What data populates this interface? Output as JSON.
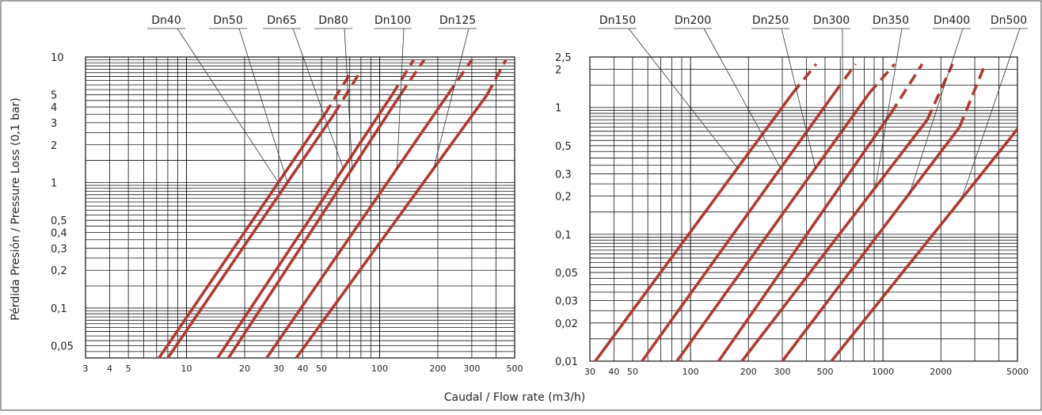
{
  "chart_data": [
    {
      "type": "line",
      "panel": "left",
      "scale": "log-log",
      "ylabel": "Pérdida Presión / Pressure Loss (0,1 bar)",
      "xlim": [
        3,
        500
      ],
      "ylim": [
        0.04,
        10
      ],
      "x_ticks": [
        "3",
        "4",
        "5",
        "10",
        "20",
        "30",
        "40",
        "50",
        "100",
        "200",
        "300",
        "500"
      ],
      "y_ticks": [
        "10",
        "5",
        "4",
        "3",
        "2",
        "1",
        "0,5",
        "0,4",
        "0,3",
        "0,2",
        "0,1",
        "0,05"
      ],
      "series": [
        {
          "name": "Dn40",
          "solid": [
            [
              7.2,
              0.04
            ],
            [
              52,
              3.5
            ]
          ],
          "dashed": [
            [
              52,
              3.5
            ],
            [
              72,
              7.8
            ]
          ]
        },
        {
          "name": "Dn50",
          "solid": [
            [
              8.0,
              0.04
            ],
            [
              58,
              3.5
            ]
          ],
          "dashed": [
            [
              58,
              3.5
            ],
            [
              80,
              7.8
            ]
          ]
        },
        {
          "name": "Dn65",
          "solid": [
            [
              14.5,
              0.04
            ],
            [
              116,
              5
            ]
          ],
          "dashed": [
            [
              116,
              5
            ],
            [
              150,
              9.5
            ]
          ]
        },
        {
          "name": "Dn80",
          "solid": [
            [
              16.5,
              0.04
            ],
            [
              128,
              5
            ]
          ],
          "dashed": [
            [
              128,
              5
            ],
            [
              170,
              9.5
            ]
          ]
        },
        {
          "name": "Dn100",
          "solid": [
            [
              26,
              0.04
            ],
            [
              225,
              5
            ]
          ],
          "dashed": [
            [
              225,
              5
            ],
            [
              300,
              9.5
            ]
          ]
        },
        {
          "name": "Dn125",
          "solid": [
            [
              37,
              0.04
            ],
            [
              360,
              5
            ]
          ],
          "dashed": [
            [
              360,
              5
            ],
            [
              450,
              9.5
            ]
          ]
        }
      ]
    },
    {
      "type": "line",
      "panel": "right",
      "scale": "log-log",
      "xlabel": "Caudal / Flow rate (m3/h)",
      "xlim": [
        30,
        5000
      ],
      "ylim": [
        0.01,
        2.5
      ],
      "x_ticks": [
        "30",
        "40",
        "50",
        "100",
        "200",
        "300",
        "500",
        "1000",
        "2000",
        "5000"
      ],
      "y_ticks": [
        "2,5",
        "2",
        "1",
        "0,5",
        "0,3",
        "0,2",
        "0,1",
        "0,05",
        "0,03",
        "0,02",
        "0,01"
      ],
      "series": [
        {
          "name": "Dn150",
          "solid": [
            [
              32,
              0.01
            ],
            [
              340,
              1.3
            ]
          ],
          "dashed": [
            [
              340,
              1.3
            ],
            [
              450,
              2.2
            ]
          ]
        },
        {
          "name": "Dn200",
          "solid": [
            [
              56,
              0.01
            ],
            [
              560,
              1.3
            ]
          ],
          "dashed": [
            [
              560,
              1.3
            ],
            [
              720,
              2.2
            ]
          ]
        },
        {
          "name": "Dn250",
          "solid": [
            [
              85,
              0.01
            ],
            [
              850,
              1.3
            ]
          ],
          "dashed": [
            [
              850,
              1.3
            ],
            [
              1150,
              2.2
            ]
          ]
        },
        {
          "name": "Dn300",
          "solid": [
            [
              140,
              0.01
            ],
            [
              1100,
              0.9
            ]
          ],
          "dashed": [
            [
              1100,
              0.9
            ],
            [
              1600,
              2.2
            ]
          ]
        },
        {
          "name": "Dn350",
          "solid": [
            [
              185,
              0.01
            ],
            [
              1700,
              0.8
            ]
          ],
          "dashed": [
            [
              1700,
              0.8
            ],
            [
              2300,
              2.2
            ]
          ]
        },
        {
          "name": "Dn400",
          "solid": [
            [
              300,
              0.01
            ],
            [
              2500,
              0.7
            ]
          ],
          "dashed": [
            [
              2500,
              0.7
            ],
            [
              3400,
              2.2
            ]
          ]
        },
        {
          "name": "Dn500",
          "solid": [
            [
              540,
              0.01
            ],
            [
              4700,
              0.6
            ]
          ],
          "dashed": [
            [
              4700,
              0.6
            ],
            [
              5000,
              0.68
            ]
          ]
        }
      ]
    }
  ]
}
